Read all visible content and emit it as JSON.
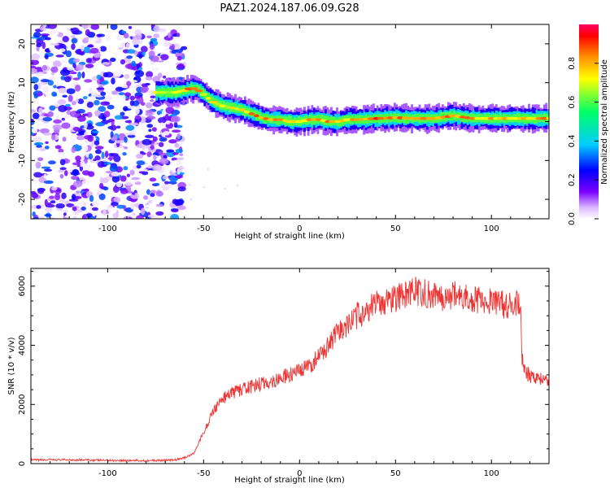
{
  "title": "PAZ1.2024.187.06.09.G28",
  "chart_data": [
    {
      "type": "heatmap",
      "xlabel": "Height of straight line (km)",
      "ylabel": "Frequency (Hz)",
      "xlim": [
        -140,
        130
      ],
      "ylim": [
        -25,
        25
      ],
      "x_ticks": [
        -100,
        -50,
        0,
        50,
        100
      ],
      "y_ticks": [
        -20,
        -10,
        0,
        10,
        20
      ],
      "colorbar": {
        "label": "Normalized spectral amplitude",
        "range": [
          0,
          1
        ],
        "ticks": [
          0.0,
          0.2,
          0.4,
          0.6,
          0.8
        ],
        "colors": [
          "#ffffff",
          "#d9b3ff",
          "#7a00ff",
          "#0000ff",
          "#00ccff",
          "#00ff66",
          "#ffff00",
          "#ff8800",
          "#ff0000",
          "#ff0066"
        ]
      },
      "ridge": {
        "x": [
          -75,
          -65,
          -60,
          -57,
          -54,
          -50,
          -45,
          -40,
          -35,
          -30,
          -25,
          -20,
          -15,
          -10,
          -5,
          0,
          5,
          10,
          15,
          20,
          25,
          30,
          40,
          50,
          60,
          70,
          80,
          90,
          100,
          110,
          120,
          130
        ],
        "frequency": [
          7.5,
          7.5,
          8,
          8.5,
          8.5,
          7,
          5,
          4,
          3.5,
          3,
          2,
          1,
          0.5,
          0.5,
          0,
          0,
          0.5,
          0.5,
          0,
          0,
          0.5,
          0.5,
          0.8,
          1,
          0.8,
          0.8,
          1.5,
          0.8,
          0.8,
          0.8,
          0.8,
          0.8
        ],
        "amplitude": [
          0.7,
          0.75,
          0.85,
          0.9,
          0.9,
          0.8,
          0.8,
          0.75,
          0.75,
          0.8,
          0.85,
          0.9,
          0.8,
          0.85,
          0.8,
          0.8,
          0.85,
          0.8,
          0.85,
          0.8,
          0.8,
          0.85,
          0.9,
          0.9,
          0.9,
          0.85,
          0.9,
          0.85,
          0.8,
          0.85,
          0.85,
          0.85
        ]
      },
      "noise_region_x": [
        -140,
        -60
      ],
      "noise_amplitude_range": [
        0,
        0.35
      ]
    },
    {
      "type": "line",
      "xlabel": "Height of straight line (km)",
      "ylabel": "SNR (10 * v/v)",
      "xlim": [
        -140,
        130
      ],
      "ylim": [
        0,
        6600
      ],
      "x_ticks": [
        -100,
        -50,
        0,
        50,
        100
      ],
      "y_ticks": [
        0,
        2000,
        4000,
        6000
      ],
      "color": "#ee3333",
      "x": [
        -140,
        -120,
        -100,
        -80,
        -65,
        -60,
        -55,
        -52,
        -50,
        -45,
        -40,
        -35,
        -30,
        -25,
        -20,
        -15,
        -10,
        -5,
        0,
        5,
        10,
        15,
        20,
        25,
        30,
        35,
        40,
        45,
        50,
        55,
        60,
        65,
        70,
        75,
        80,
        85,
        90,
        95,
        100,
        105,
        110,
        115,
        116,
        118,
        120,
        125,
        130
      ],
      "y": [
        120,
        130,
        110,
        100,
        120,
        200,
        350,
        800,
        1000,
        1800,
        2200,
        2400,
        2500,
        2600,
        2700,
        2750,
        2900,
        3000,
        3100,
        3300,
        3600,
        4000,
        4400,
        4700,
        5000,
        5200,
        5400,
        5500,
        5600,
        5700,
        5800,
        5750,
        5700,
        5650,
        5700,
        5600,
        5600,
        5500,
        5500,
        5400,
        5300,
        5400,
        3600,
        3100,
        3000,
        2900,
        2800
      ]
    }
  ]
}
